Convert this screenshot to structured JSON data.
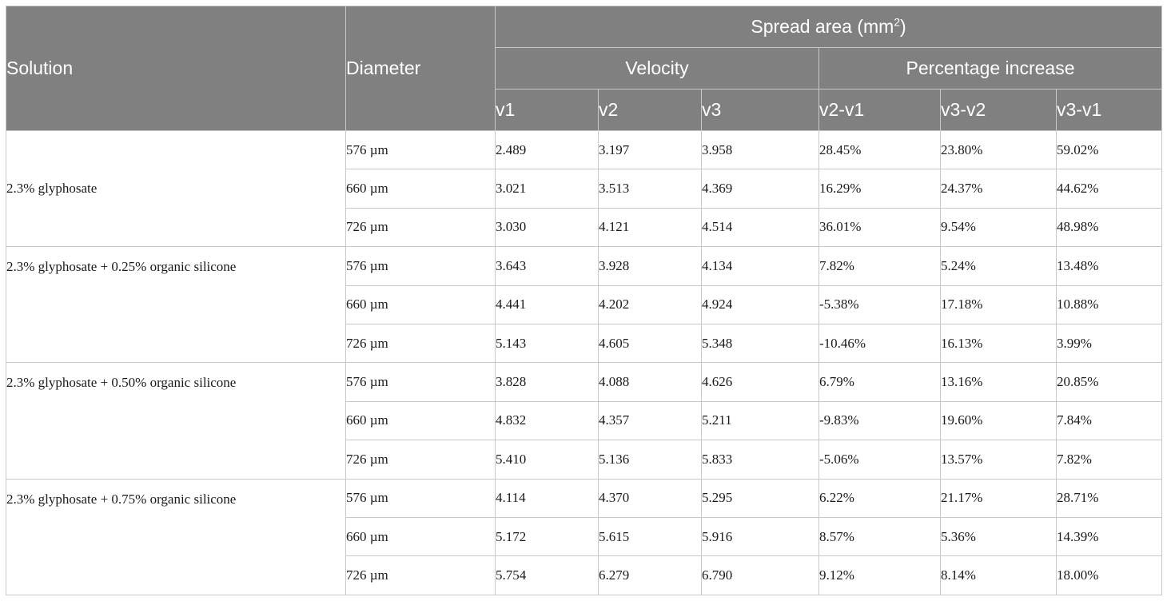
{
  "header": {
    "solution": "Solution",
    "diameter": "Diameter",
    "spread_area": "Spread area (mm",
    "spread_area_sup": "2",
    "spread_area_close": ")",
    "velocity": "Velocity",
    "percentage_increase": "Percentage increase",
    "sub": [
      "v1",
      "v2",
      "v3",
      "v2-v1",
      "v3-v2",
      "v3-v1"
    ]
  },
  "groups": [
    {
      "solution": "2.3% glyphosate",
      "rows": [
        {
          "diameter": "576 µm",
          "v1": "2.489",
          "v2": "3.197",
          "v3": "3.958",
          "p21": "28.45%",
          "p32": "23.80%",
          "p31": "59.02%"
        },
        {
          "diameter": "660 µm",
          "v1": "3.021",
          "v2": "3.513",
          "v3": "4.369",
          "p21": "16.29%",
          "p32": "24.37%",
          "p31": "44.62%"
        },
        {
          "diameter": "726 µm",
          "v1": "3.030",
          "v2": "4.121",
          "v3": "4.514",
          "p21": "36.01%",
          "p32": "9.54%",
          "p31": "48.98%"
        }
      ]
    },
    {
      "solution": "2.3% glyphosate + 0.25% organic silicone",
      "rows": [
        {
          "diameter": "576 µm",
          "v1": "3.643",
          "v2": "3.928",
          "v3": "4.134",
          "p21": "7.82%",
          "p32": "5.24%",
          "p31": "13.48%"
        },
        {
          "diameter": "660 µm",
          "v1": "4.441",
          "v2": "4.202",
          "v3": "4.924",
          "p21": "-5.38%",
          "p32": "17.18%",
          "p31": "10.88%"
        },
        {
          "diameter": "726 µm",
          "v1": "5.143",
          "v2": "4.605",
          "v3": "5.348",
          "p21": "-10.46%",
          "p32": "16.13%",
          "p31": "3.99%"
        }
      ]
    },
    {
      "solution": "2.3% glyphosate + 0.50% organic silicone",
      "rows": [
        {
          "diameter": "576 µm",
          "v1": "3.828",
          "v2": "4.088",
          "v3": "4.626",
          "p21": "6.79%",
          "p32": "13.16%",
          "p31": "20.85%"
        },
        {
          "diameter": "660 µm",
          "v1": "4.832",
          "v2": "4.357",
          "v3": "5.211",
          "p21": "-9.83%",
          "p32": "19.60%",
          "p31": "7.84%"
        },
        {
          "diameter": "726 µm",
          "v1": "5.410",
          "v2": "5.136",
          "v3": "5.833",
          "p21": "-5.06%",
          "p32": "13.57%",
          "p31": "7.82%"
        }
      ]
    },
    {
      "solution": "2.3% glyphosate + 0.75% organic silicone",
      "rows": [
        {
          "diameter": "576 µm",
          "v1": "4.114",
          "v2": "4.370",
          "v3": "5.295",
          "p21": "6.22%",
          "p32": "21.17%",
          "p31": "28.71%"
        },
        {
          "diameter": "660 µm",
          "v1": "5.172",
          "v2": "5.615",
          "v3": "5.916",
          "p21": "8.57%",
          "p32": "5.36%",
          "p31": "14.39%"
        },
        {
          "diameter": "726 µm",
          "v1": "5.754",
          "v2": "6.279",
          "v3": "6.790",
          "p21": "9.12%",
          "p32": "8.14%",
          "p31": "18.00%"
        }
      ]
    }
  ]
}
